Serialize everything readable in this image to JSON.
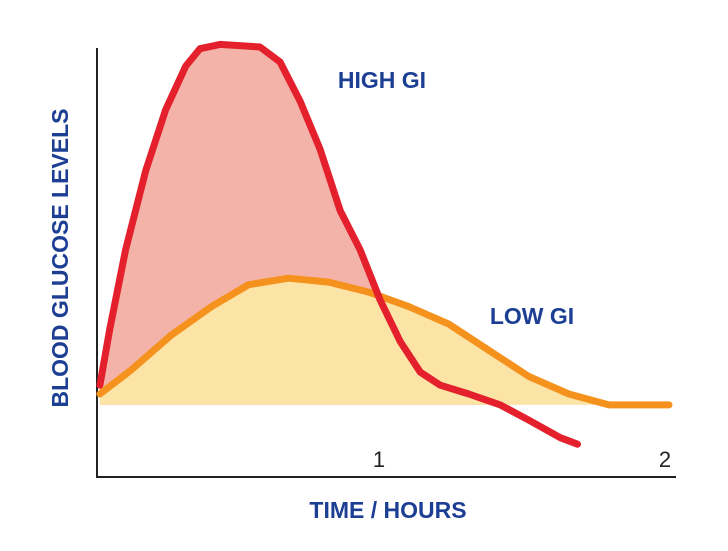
{
  "chart_data": {
    "type": "line",
    "xlabel": "TIME / HOURS",
    "ylabel": "BLOOD GLUCOSE LEVELS",
    "xlim": [
      0,
      2
    ],
    "xticks": [
      1,
      2
    ],
    "ylim": [
      0,
      100
    ],
    "fill": true,
    "series": [
      {
        "name": "HIGH GI",
        "color": "#e3202b",
        "fill_color": "#f4b3a8",
        "x": [
          0.01,
          0.045,
          0.1,
          0.17,
          0.24,
          0.31,
          0.36,
          0.43,
          0.57,
          0.64,
          0.71,
          0.78,
          0.85,
          0.92,
          0.99,
          1.06,
          1.13,
          1.2,
          1.3,
          1.41,
          1.51,
          1.62,
          1.68
        ],
        "values": [
          21,
          34,
          52,
          70,
          84,
          94,
          98,
          99,
          98.4,
          95,
          86,
          75,
          61,
          52,
          40.5,
          31,
          24,
          21,
          19,
          16.5,
          13,
          9,
          7.5
        ]
      },
      {
        "name": "LOW GI",
        "color": "#f5921e",
        "fill_color": "#fbe4a6",
        "x": [
          0.01,
          0.12,
          0.26,
          0.4,
          0.53,
          0.67,
          0.81,
          0.95,
          1.09,
          1.23,
          1.37,
          1.51,
          1.65,
          1.79,
          2.0
        ],
        "values": [
          19,
          24.5,
          32.5,
          39,
          44,
          45.5,
          44.6,
          42.3,
          39,
          35,
          29,
          23,
          19,
          16.5,
          16.5
        ]
      }
    ]
  }
}
